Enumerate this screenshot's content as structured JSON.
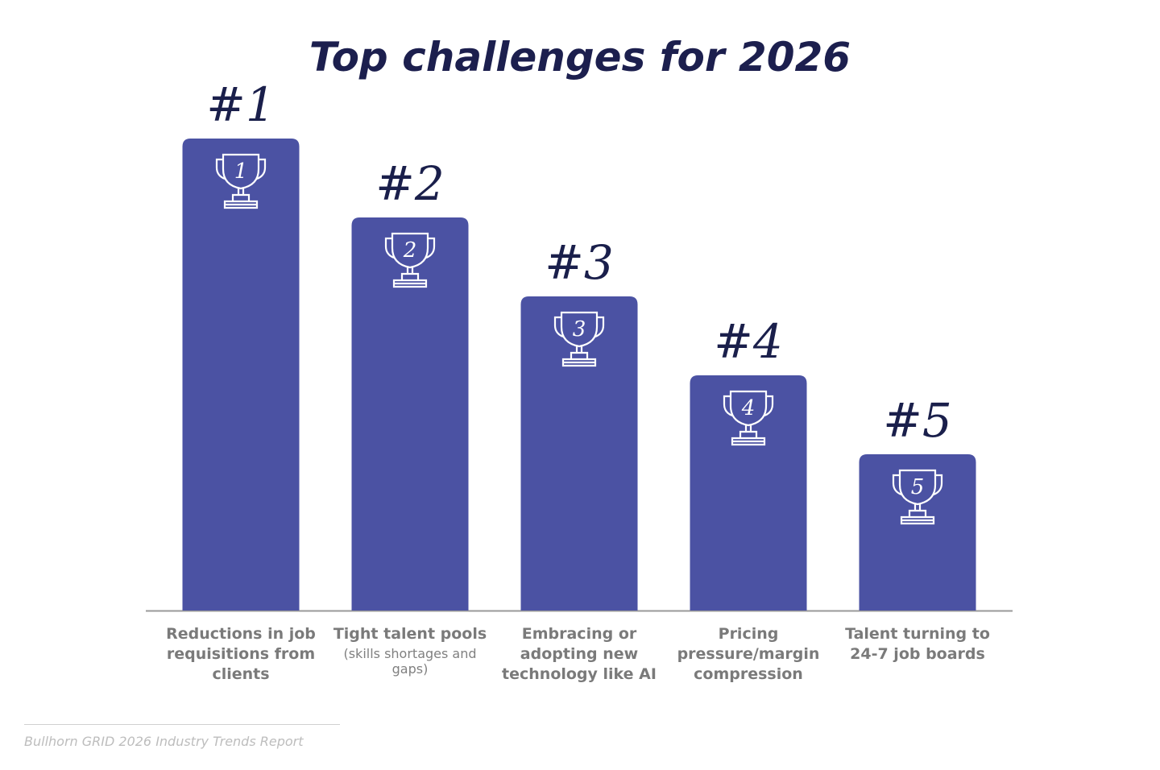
{
  "title": "Top challenges for 2026",
  "items": [
    {
      "rank": "#1",
      "trophy": "1",
      "label": "Reductions in job requisitions from clients"
    },
    {
      "rank": "#2",
      "trophy": "2",
      "label": "Tight talent pools",
      "note": "(skills shortages and gaps)"
    },
    {
      "rank": "#3",
      "trophy": "3",
      "label": "Embracing or adopting new technology like AI"
    },
    {
      "rank": "#4",
      "trophy": "4",
      "label": "Pricing pressure/margin compression"
    },
    {
      "rank": "#5",
      "trophy": "5",
      "label": "Talent turning to 24-7 job boards"
    }
  ],
  "source": "Bullhorn GRID 2026 Industry Trends Report"
}
